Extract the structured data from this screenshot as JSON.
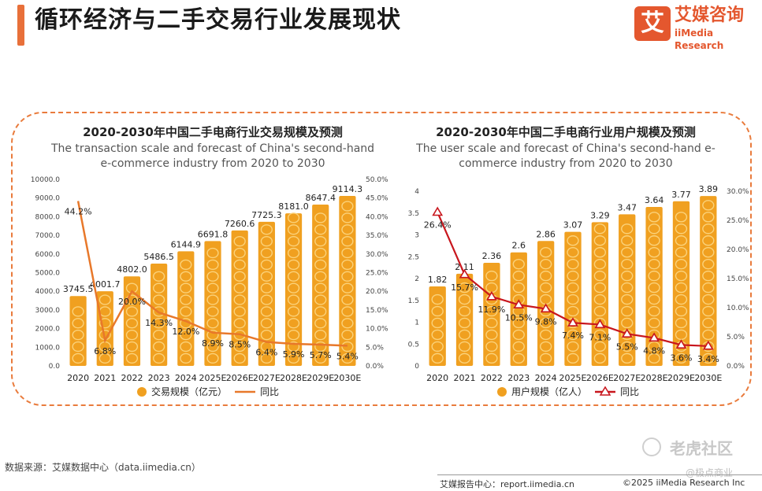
{
  "header": {
    "title": "循环经济与二手交易行业发展现状",
    "logo_mark": "艾",
    "logo_cn": "艾媒咨询",
    "logo_en": "iiMedia Research"
  },
  "colors": {
    "bar": "#f0a020",
    "bar_light": "#fbd27a",
    "line1": "#e8782a",
    "line2": "#c8161d",
    "frame": "#e97b3c"
  },
  "chart_data": [
    {
      "type": "bar",
      "title": "2020-2030年中国二手电商行业交易规模及预测",
      "subtitle_lines": [
        "The transaction scale and forecast of China's second-hand",
        "e-commerce industry from 2020 to 2030"
      ],
      "categories": [
        "2020",
        "2021",
        "2022",
        "2023",
        "2024",
        "2025E",
        "2026E",
        "2027E",
        "2028E",
        "2029E",
        "2030E"
      ],
      "series": [
        {
          "name": "交易规模（亿元）",
          "type": "bar",
          "axis": "left",
          "values": [
            3745.5,
            4001.7,
            4802.0,
            5486.5,
            6144.9,
            6691.8,
            7260.6,
            7725.3,
            8181.0,
            8647.4,
            9114.3
          ],
          "labels": [
            "3745.5",
            "4001.7",
            "4802.0",
            "5486.5",
            "6144.9",
            "6691.8",
            "7260.6",
            "7725.3",
            "8181.0",
            "8647.4",
            "9114.3"
          ]
        },
        {
          "name": "同比",
          "type": "line",
          "axis": "right",
          "values": [
            44.2,
            6.8,
            20.0,
            14.3,
            12.0,
            8.9,
            8.5,
            6.4,
            5.9,
            5.7,
            5.4
          ],
          "labels": [
            "44.2%",
            "6.8%",
            "20.0%",
            "14.3%",
            "12.0%",
            "8.9%",
            "8.5%",
            "6.4%",
            "5.9%",
            "5.7%",
            "5.4%"
          ]
        }
      ],
      "left_ticks": [
        "0.0",
        "1000.0",
        "2000.0",
        "3000.0",
        "4000.0",
        "5000.0",
        "6000.0",
        "7000.0",
        "8000.0",
        "9000.0",
        "10000.0"
      ],
      "right_ticks": [
        "0.0%",
        "5.0%",
        "10.0%",
        "15.0%",
        "20.0%",
        "25.0%",
        "30.0%",
        "35.0%",
        "40.0%",
        "45.0%",
        "50.0%"
      ],
      "ylim": [
        0,
        10000
      ],
      "y2lim": [
        0,
        50
      ],
      "legend_position": "bottom"
    },
    {
      "type": "bar",
      "title": "2020-2030年中国二手电商行业用户规模及预测",
      "subtitle_lines": [
        "The user scale and forecast of China's second-hand e-",
        "commerce industry from 2020 to 2030"
      ],
      "categories": [
        "2020",
        "2021",
        "2022",
        "2023",
        "2024",
        "2025E",
        "2026E",
        "2027E",
        "2028E",
        "2029E",
        "2030E"
      ],
      "series": [
        {
          "name": "用户规模（亿人）",
          "type": "bar",
          "axis": "left",
          "values": [
            1.82,
            2.11,
            2.36,
            2.6,
            2.86,
            3.07,
            3.29,
            3.47,
            3.64,
            3.77,
            3.89
          ],
          "labels": [
            "1.82",
            "2.11",
            "2.36",
            "2.6",
            "2.86",
            "3.07",
            "3.29",
            "3.47",
            "3.64",
            "3.77",
            "3.89"
          ]
        },
        {
          "name": "同比",
          "type": "line",
          "axis": "right",
          "values": [
            26.4,
            15.7,
            11.9,
            10.5,
            9.8,
            7.4,
            7.1,
            5.5,
            4.8,
            3.6,
            3.4
          ],
          "labels": [
            "26.4%",
            "15.7%",
            "11.9%",
            "10.5%",
            "9.8%",
            "7.4%",
            "7.1%",
            "5.5%",
            "4.8%",
            "3.6%",
            "3.4%"
          ]
        }
      ],
      "left_ticks": [
        "0",
        "0.5",
        "1",
        "1.5",
        "2",
        "2.5",
        "3",
        "3.5",
        "4"
      ],
      "right_ticks": [
        "0.0%",
        "5.0%",
        "10.0%",
        "15.0%",
        "20.0%",
        "25.0%",
        "30.0%"
      ],
      "ylim": [
        0,
        4
      ],
      "y2lim": [
        0,
        30
      ],
      "legend_position": "bottom"
    }
  ],
  "footer": {
    "source": "数据来源：艾媒数据中心（data.iimedia.cn）",
    "report": "艾媒报告中心：report.iimedia.cn",
    "copyright": "©2025  iiMedia Research  Inc",
    "watermark_1": "老虎社区",
    "watermark_2": "@极点商业"
  }
}
